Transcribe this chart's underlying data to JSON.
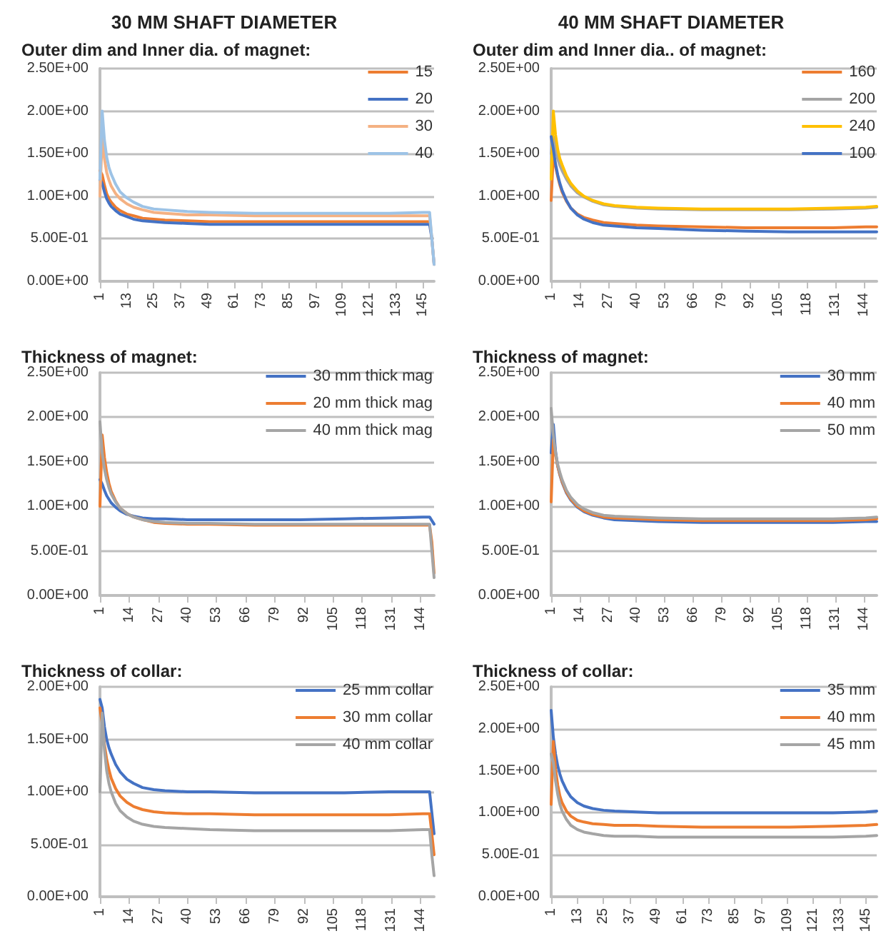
{
  "chart_data": [
    {
      "type": "line",
      "title": "30 MM SHAFT DIAMETER",
      "subtitle": "Outer dim and Inner dia. of magnet:",
      "grid": "y",
      "legend": "top right",
      "marker": "none",
      "line_style": "solid",
      "x": [
        1,
        2,
        3,
        4,
        5,
        6,
        8,
        10,
        13,
        16,
        20,
        25,
        30,
        40,
        50,
        70,
        90,
        110,
        130,
        145,
        148,
        149,
        150
      ],
      "xlim": [
        1,
        150
      ],
      "xticks": [
        1,
        13,
        25,
        37,
        49,
        61,
        73,
        85,
        97,
        109,
        121,
        133,
        145
      ],
      "ylim": [
        0,
        2.5
      ],
      "yticks": [
        {
          "value": 0,
          "label": "0.00E+00"
        },
        {
          "value": 0.5,
          "label": "5.00E-01"
        },
        {
          "value": 1,
          "label": "1.00E+00"
        },
        {
          "value": 1.5,
          "label": "1.50E+00"
        },
        {
          "value": 2,
          "label": "2.00E+00"
        },
        {
          "value": 2.5,
          "label": "2.50E+00"
        }
      ],
      "series": [
        {
          "name": "15",
          "color": "#ed7d31",
          "values": [
            1.3,
            1.25,
            1.13,
            1.03,
            0.97,
            0.93,
            0.87,
            0.83,
            0.79,
            0.77,
            0.74,
            0.73,
            0.72,
            0.71,
            0.7,
            0.7,
            0.7,
            0.7,
            0.7,
            0.7,
            0.7,
            null,
            null
          ]
        },
        {
          "name": "20",
          "color": "#4472c4",
          "values": [
            1.2,
            1.15,
            1.05,
            0.97,
            0.92,
            0.88,
            0.83,
            0.79,
            0.76,
            0.73,
            0.71,
            0.7,
            0.69,
            0.68,
            0.67,
            0.67,
            0.67,
            0.67,
            0.67,
            0.67,
            0.67,
            0.5,
            0.2
          ]
        },
        {
          "name": "30",
          "color": "#f4b183",
          "values": [
            1.0,
            1.7,
            1.44,
            1.28,
            1.19,
            1.12,
            1.03,
            0.97,
            0.91,
            0.87,
            0.84,
            0.81,
            0.8,
            0.78,
            0.78,
            0.77,
            0.77,
            0.77,
            0.77,
            0.77,
            0.77,
            0.5,
            0.2
          ]
        },
        {
          "name": "40",
          "color": "#9dc3e6",
          "values": [
            1.2,
            2.0,
            1.66,
            1.46,
            1.34,
            1.26,
            1.14,
            1.05,
            0.98,
            0.93,
            0.88,
            0.85,
            0.84,
            0.82,
            0.81,
            0.8,
            0.8,
            0.8,
            0.8,
            0.81,
            0.81,
            0.5,
            0.2
          ]
        }
      ]
    },
    {
      "type": "line",
      "title": "40 MM SHAFT DIAMETER",
      "subtitle": "Outer dim and Inner dia.. of magnet:",
      "grid": "y",
      "legend": "top right",
      "marker": "none",
      "line_style": "solid",
      "x": [
        1,
        2,
        3,
        4,
        5,
        6,
        8,
        10,
        13,
        16,
        20,
        25,
        30,
        40,
        50,
        70,
        90,
        110,
        130,
        145,
        150
      ],
      "xlim": [
        1,
        150
      ],
      "xticks": [
        1,
        14,
        27,
        40,
        53,
        66,
        79,
        92,
        105,
        118,
        131,
        144
      ],
      "ylim": [
        0,
        2.5
      ],
      "yticks": [
        {
          "value": 0,
          "label": "0.00E+00"
        },
        {
          "value": 0.5,
          "label": "5.00E-01"
        },
        {
          "value": 1,
          "label": "1.00E+00"
        },
        {
          "value": 1.5,
          "label": "1.50E+00"
        },
        {
          "value": 2,
          "label": "2.00E+00"
        },
        {
          "value": 2.5,
          "label": "2.50E+00"
        }
      ],
      "series": [
        {
          "name": "160",
          "color": "#ed7d31",
          "values": [
            0.95,
            1.5,
            1.35,
            1.23,
            1.13,
            1.05,
            0.94,
            0.86,
            0.79,
            0.75,
            0.72,
            0.69,
            0.68,
            0.66,
            0.65,
            0.64,
            0.63,
            0.63,
            0.63,
            0.64,
            0.64
          ]
        },
        {
          "name": "200",
          "color": "#a5a5a5",
          "values": [
            1.5,
            1.7,
            1.55,
            1.44,
            1.36,
            1.3,
            1.2,
            1.12,
            1.04,
            0.99,
            0.94,
            0.9,
            0.88,
            0.86,
            0.85,
            0.84,
            0.84,
            0.84,
            0.85,
            0.86,
            0.87
          ]
        },
        {
          "name": "240",
          "color": "#ffc000",
          "values": [
            1.2,
            2.0,
            1.72,
            1.55,
            1.44,
            1.37,
            1.24,
            1.15,
            1.06,
            1.0,
            0.95,
            0.91,
            0.89,
            0.87,
            0.86,
            0.85,
            0.85,
            0.85,
            0.86,
            0.87,
            0.88
          ]
        },
        {
          "name": "100",
          "color": "#4472c4",
          "values": [
            1.7,
            1.55,
            1.38,
            1.25,
            1.15,
            1.07,
            0.95,
            0.86,
            0.78,
            0.73,
            0.69,
            0.66,
            0.65,
            0.63,
            0.62,
            0.6,
            0.59,
            0.58,
            0.58,
            0.58,
            0.58
          ]
        }
      ]
    },
    {
      "type": "line",
      "title": "Thickness of magnet:",
      "grid": "y",
      "legend": "top right",
      "marker": "none",
      "line_style": "solid",
      "x": [
        1,
        2,
        3,
        4,
        5,
        6,
        8,
        10,
        13,
        16,
        20,
        25,
        30,
        40,
        50,
        70,
        90,
        110,
        130,
        145,
        148,
        149,
        150
      ],
      "xlim": [
        1,
        150
      ],
      "xticks": [
        1,
        14,
        27,
        40,
        53,
        66,
        79,
        92,
        105,
        118,
        131,
        144
      ],
      "ylim": [
        0,
        2.5
      ],
      "yticks": [
        {
          "value": 0,
          "label": "0.00E+00"
        },
        {
          "value": 0.5,
          "label": "5.00E-01"
        },
        {
          "value": 1,
          "label": "1.00E+00"
        },
        {
          "value": 1.5,
          "label": "1.50E+00"
        },
        {
          "value": 2,
          "label": "2.00E+00"
        },
        {
          "value": 2.5,
          "label": "2.50E+00"
        }
      ],
      "series": [
        {
          "name": "30 mm thick mag",
          "color": "#4472c4",
          "values": [
            1.3,
            1.25,
            1.18,
            1.12,
            1.08,
            1.04,
            0.99,
            0.95,
            0.91,
            0.89,
            0.87,
            0.86,
            0.86,
            0.85,
            0.85,
            0.85,
            0.85,
            0.86,
            0.87,
            0.88,
            0.88,
            0.84,
            0.8
          ]
        },
        {
          "name": "20 mm thick mag",
          "color": "#ed7d31",
          "values": [
            1.0,
            1.8,
            1.55,
            1.38,
            1.26,
            1.17,
            1.06,
            0.98,
            0.92,
            0.88,
            0.85,
            0.82,
            0.81,
            0.8,
            0.8,
            0.79,
            0.79,
            0.79,
            0.79,
            0.79,
            0.79,
            0.6,
            0.25
          ]
        },
        {
          "name": "40 mm thick mag",
          "color": "#a5a5a5",
          "values": [
            1.95,
            1.6,
            1.42,
            1.3,
            1.21,
            1.14,
            1.05,
            0.98,
            0.92,
            0.88,
            0.85,
            0.83,
            0.82,
            0.81,
            0.81,
            0.8,
            0.8,
            0.8,
            0.8,
            0.8,
            0.8,
            0.5,
            0.2
          ]
        }
      ]
    },
    {
      "type": "line",
      "title": "Thickness of magnet:",
      "grid": "y",
      "legend": "top right",
      "marker": "none",
      "line_style": "solid",
      "x": [
        1,
        2,
        3,
        4,
        5,
        6,
        8,
        10,
        13,
        16,
        20,
        25,
        30,
        40,
        50,
        70,
        90,
        110,
        130,
        145,
        150
      ],
      "xlim": [
        1,
        150
      ],
      "xticks": [
        1,
        14,
        27,
        40,
        53,
        66,
        79,
        92,
        105,
        118,
        131,
        144
      ],
      "ylim": [
        0,
        2.5
      ],
      "yticks": [
        {
          "value": 0,
          "label": "0.00E+00"
        },
        {
          "value": 0.5,
          "label": "5.00E-01"
        },
        {
          "value": 1,
          "label": "1.00E+00"
        },
        {
          "value": 1.5,
          "label": "1.50E+00"
        },
        {
          "value": 2,
          "label": "2.00E+00"
        },
        {
          "value": 2.5,
          "label": "2.50E+00"
        }
      ],
      "series": [
        {
          "name": "30 mm",
          "color": "#4472c4",
          "values": [
            1.6,
            1.92,
            1.62,
            1.45,
            1.35,
            1.27,
            1.15,
            1.07,
            0.99,
            0.94,
            0.9,
            0.87,
            0.85,
            0.84,
            0.83,
            0.82,
            0.82,
            0.82,
            0.82,
            0.83,
            0.83
          ]
        },
        {
          "name": "40 mm",
          "color": "#ed7d31",
          "values": [
            1.05,
            1.75,
            1.58,
            1.45,
            1.36,
            1.28,
            1.16,
            1.08,
            1.0,
            0.95,
            0.91,
            0.88,
            0.87,
            0.86,
            0.85,
            0.84,
            0.84,
            0.84,
            0.84,
            0.85,
            0.86
          ]
        },
        {
          "name": "50 mm",
          "color": "#a5a5a5",
          "values": [
            2.1,
            1.8,
            1.6,
            1.47,
            1.38,
            1.3,
            1.18,
            1.1,
            1.02,
            0.97,
            0.93,
            0.9,
            0.89,
            0.88,
            0.87,
            0.86,
            0.86,
            0.86,
            0.86,
            0.87,
            0.88
          ]
        }
      ]
    },
    {
      "type": "line",
      "title": "Thickness of collar:",
      "grid": "y",
      "legend": "top right",
      "marker": "none",
      "line_style": "solid",
      "x": [
        1,
        2,
        3,
        4,
        5,
        6,
        8,
        10,
        13,
        16,
        20,
        25,
        30,
        40,
        50,
        70,
        90,
        110,
        130,
        145,
        148,
        149,
        150
      ],
      "xlim": [
        1,
        150
      ],
      "xticks": [
        1,
        14,
        27,
        40,
        53,
        66,
        79,
        92,
        105,
        118,
        131,
        144
      ],
      "ylim": [
        0,
        2
      ],
      "yticks": [
        {
          "value": 0,
          "label": "0.00E+00"
        },
        {
          "value": 0.5,
          "label": "5.00E-01"
        },
        {
          "value": 1,
          "label": "1.00E+00"
        },
        {
          "value": 1.5,
          "label": "1.50E+00"
        },
        {
          "value": 2,
          "label": "2.00E+00"
        }
      ],
      "series": [
        {
          "name": "25 mm collar",
          "color": "#4472c4",
          "values": [
            1.88,
            1.8,
            1.62,
            1.5,
            1.42,
            1.36,
            1.26,
            1.19,
            1.12,
            1.08,
            1.04,
            1.02,
            1.01,
            1.0,
            1.0,
            0.99,
            0.99,
            0.99,
            1.0,
            1.0,
            1.0,
            0.8,
            0.6
          ]
        },
        {
          "name": "30 mm collar",
          "color": "#ed7d31",
          "values": [
            1.8,
            1.65,
            1.45,
            1.31,
            1.21,
            1.13,
            1.03,
            0.96,
            0.9,
            0.86,
            0.83,
            0.81,
            0.8,
            0.79,
            0.79,
            0.78,
            0.78,
            0.78,
            0.78,
            0.79,
            0.79,
            0.6,
            0.4
          ]
        },
        {
          "name": "40 mm collar",
          "color": "#a5a5a5",
          "values": [
            1.0,
            1.75,
            1.4,
            1.2,
            1.08,
            1.0,
            0.89,
            0.82,
            0.76,
            0.72,
            0.69,
            0.67,
            0.66,
            0.65,
            0.64,
            0.63,
            0.63,
            0.63,
            0.63,
            0.64,
            0.64,
            0.4,
            0.2
          ]
        }
      ]
    },
    {
      "type": "line",
      "title": "Thickness of collar:",
      "grid": "y",
      "legend": "top right",
      "marker": "none",
      "line_style": "solid",
      "x": [
        1,
        2,
        3,
        4,
        5,
        6,
        8,
        10,
        13,
        16,
        20,
        25,
        30,
        40,
        50,
        70,
        90,
        110,
        130,
        145,
        150
      ],
      "xlim": [
        1,
        150
      ],
      "xticks": [
        1,
        13,
        25,
        37,
        49,
        61,
        73,
        85,
        97,
        109,
        121,
        133,
        145
      ],
      "ylim": [
        0,
        2.5
      ],
      "yticks": [
        {
          "value": 0,
          "label": "0.00E+00"
        },
        {
          "value": 0.5,
          "label": "5.00E-01"
        },
        {
          "value": 1,
          "label": "1.00E+00"
        },
        {
          "value": 1.5,
          "label": "1.50E+00"
        },
        {
          "value": 2,
          "label": "2.00E+00"
        },
        {
          "value": 2.5,
          "label": "2.50E+00"
        }
      ],
      "series": [
        {
          "name": "35 mm",
          "color": "#4472c4",
          "values": [
            2.22,
            1.9,
            1.7,
            1.56,
            1.46,
            1.38,
            1.27,
            1.19,
            1.12,
            1.08,
            1.05,
            1.03,
            1.02,
            1.01,
            1.0,
            1.0,
            1.0,
            1.0,
            1.0,
            1.01,
            1.02
          ]
        },
        {
          "name": "40 mm",
          "color": "#ed7d31",
          "values": [
            1.1,
            1.85,
            1.52,
            1.33,
            1.2,
            1.12,
            1.02,
            0.96,
            0.91,
            0.89,
            0.87,
            0.86,
            0.85,
            0.85,
            0.84,
            0.83,
            0.83,
            0.83,
            0.84,
            0.85,
            0.86
          ]
        },
        {
          "name": "45 mm",
          "color": "#a5a5a5",
          "values": [
            1.7,
            1.6,
            1.38,
            1.22,
            1.1,
            1.02,
            0.92,
            0.85,
            0.8,
            0.77,
            0.75,
            0.73,
            0.72,
            0.72,
            0.71,
            0.71,
            0.71,
            0.71,
            0.71,
            0.72,
            0.73
          ]
        }
      ]
    }
  ]
}
